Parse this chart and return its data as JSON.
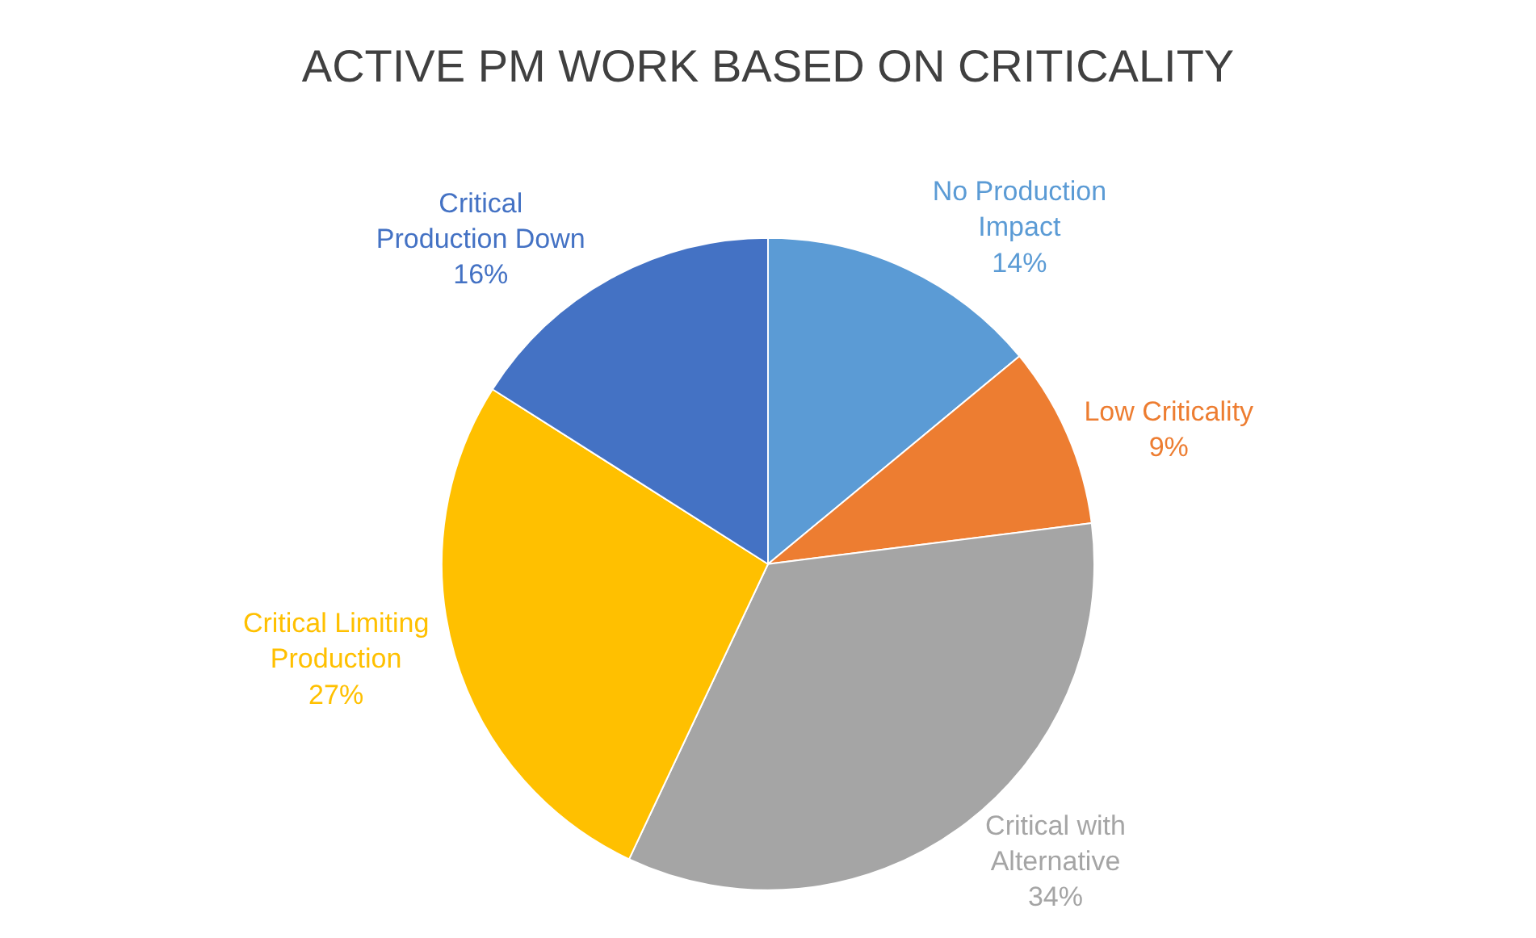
{
  "chart_data": {
    "type": "pie",
    "title": "ACTIVE PM WORK BASED ON CRITICALITY",
    "categories": [
      "No Production Impact",
      "Low Criticality",
      "Critical with Alternative",
      "Critical Limiting Production",
      "Critical Production Down"
    ],
    "values": [
      14,
      9,
      34,
      27,
      16
    ],
    "colors": [
      "#5b9bd5",
      "#ed7d31",
      "#a5a5a5",
      "#ffc000",
      "#4472c4"
    ],
    "value_labels": [
      "14%",
      "9%",
      "34%",
      "27%",
      "16%"
    ],
    "legend": false
  }
}
